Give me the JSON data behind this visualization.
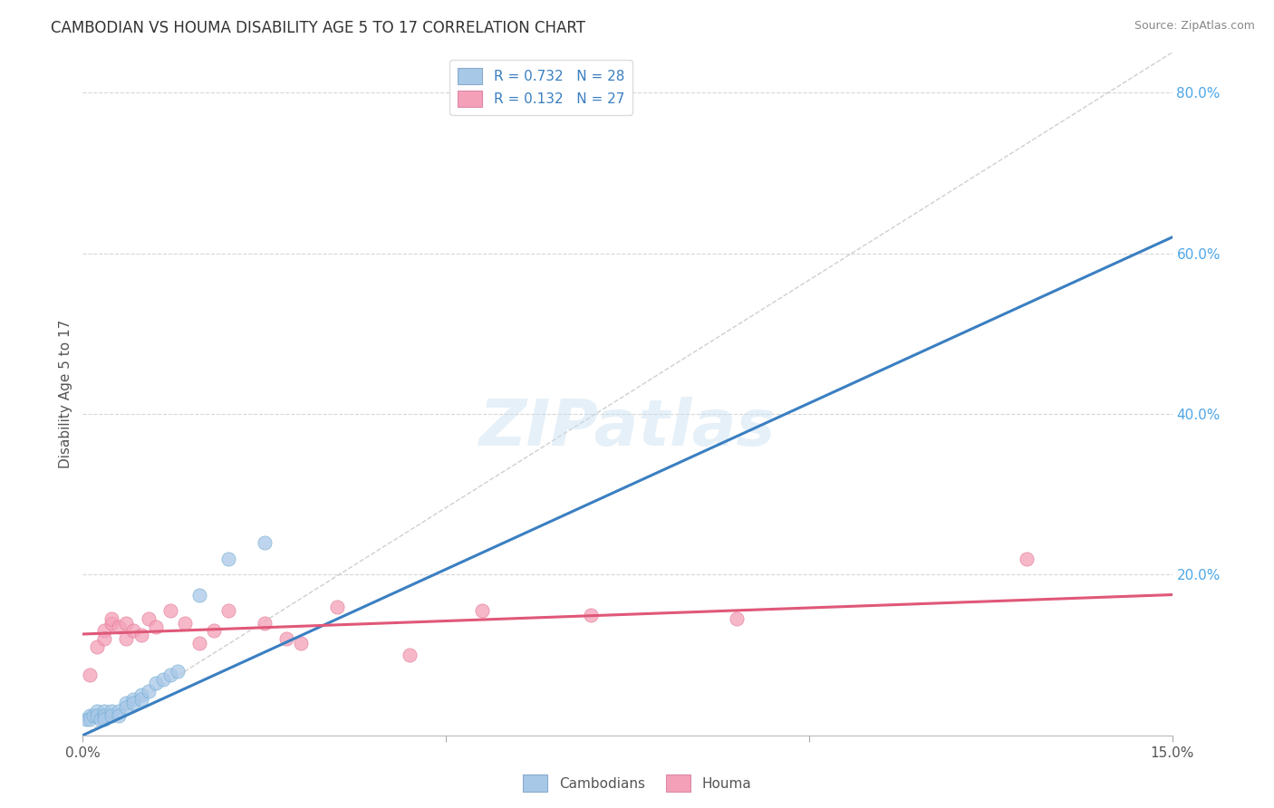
{
  "title": "CAMBODIAN VS HOUMA DISABILITY AGE 5 TO 17 CORRELATION CHART",
  "source": "Source: ZipAtlas.com",
  "ylabel": "Disability Age 5 to 17",
  "legend_cambodian": "Cambodians",
  "legend_houma": "Houma",
  "R_cambodian": 0.732,
  "N_cambodian": 28,
  "R_houma": 0.132,
  "N_houma": 27,
  "color_cambodian": "#a8c8e8",
  "color_houma": "#f4a0b8",
  "line_cambodian": "#3a7fc1",
  "line_houma": "#e05878",
  "diag_color": "#bbbbbb",
  "xmin": 0.0,
  "xmax": 0.15,
  "ymin": 0.0,
  "ymax": 0.85,
  "scatter_cambodian_x": [
    0.0005,
    0.001,
    0.001,
    0.0015,
    0.002,
    0.002,
    0.0025,
    0.003,
    0.003,
    0.003,
    0.004,
    0.004,
    0.005,
    0.005,
    0.006,
    0.006,
    0.007,
    0.007,
    0.008,
    0.008,
    0.009,
    0.01,
    0.011,
    0.012,
    0.013,
    0.016,
    0.02,
    0.025
  ],
  "scatter_cambodian_y": [
    0.02,
    0.025,
    0.02,
    0.025,
    0.03,
    0.025,
    0.02,
    0.03,
    0.025,
    0.02,
    0.03,
    0.025,
    0.03,
    0.025,
    0.04,
    0.035,
    0.045,
    0.04,
    0.05,
    0.045,
    0.055,
    0.065,
    0.07,
    0.075,
    0.08,
    0.175,
    0.22,
    0.24
  ],
  "scatter_houma_x": [
    0.001,
    0.002,
    0.003,
    0.003,
    0.004,
    0.004,
    0.005,
    0.006,
    0.006,
    0.007,
    0.008,
    0.009,
    0.01,
    0.012,
    0.014,
    0.016,
    0.018,
    0.02,
    0.025,
    0.028,
    0.03,
    0.035,
    0.045,
    0.055,
    0.07,
    0.09,
    0.13
  ],
  "scatter_houma_y": [
    0.075,
    0.11,
    0.13,
    0.12,
    0.14,
    0.145,
    0.135,
    0.12,
    0.14,
    0.13,
    0.125,
    0.145,
    0.135,
    0.155,
    0.14,
    0.115,
    0.13,
    0.155,
    0.14,
    0.12,
    0.115,
    0.16,
    0.1,
    0.155,
    0.15,
    0.145,
    0.22
  ],
  "blue_line_x": [
    0.0,
    0.15
  ],
  "blue_line_y": [
    0.0,
    0.62
  ],
  "pink_line_x": [
    0.0,
    0.15
  ],
  "pink_line_y": [
    0.126,
    0.175
  ],
  "background_color": "#ffffff",
  "grid_color": "#cccccc",
  "grid_yticks": [
    0.2,
    0.4,
    0.6,
    0.8
  ],
  "right_ytick_vals": [
    0.2,
    0.4,
    0.6,
    0.8
  ],
  "right_ytick_labels": [
    "20.0%",
    "40.0%",
    "60.0%",
    "80.0%"
  ]
}
